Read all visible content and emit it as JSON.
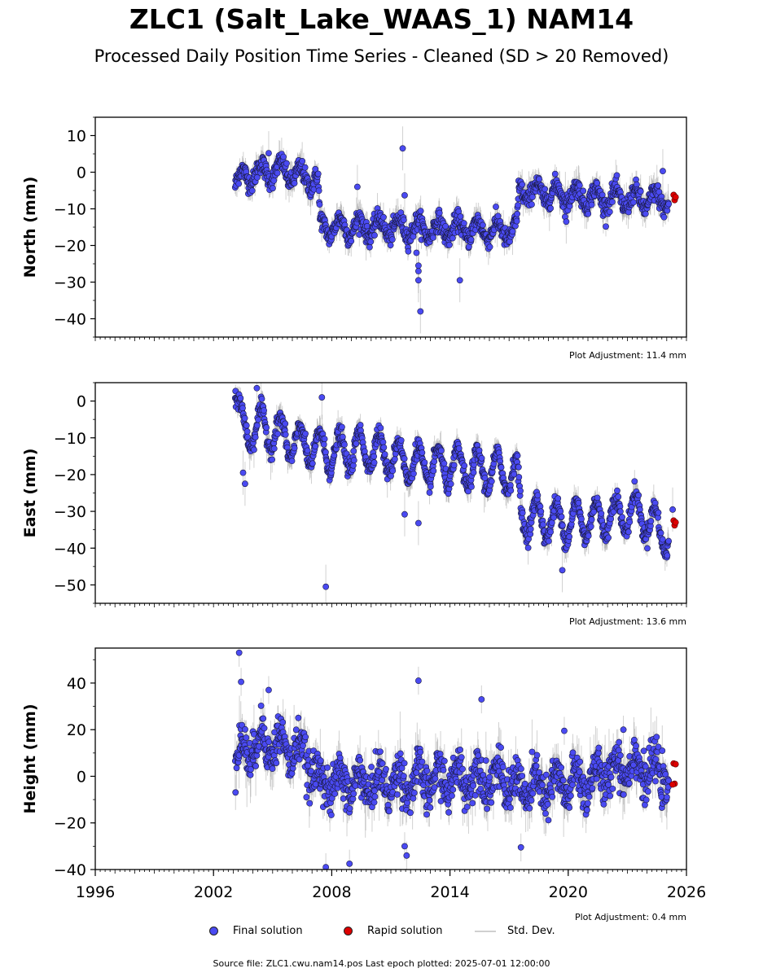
{
  "title": "ZLC1 (Salt_Lake_WAAS_1) NAM14",
  "subtitle": "Processed Daily Position Time Series - Cleaned (SD > 20 Removed)",
  "legend": {
    "final": "Final solution",
    "rapid": "Rapid solution",
    "std": "Std. Dev."
  },
  "source_text": "Source file: ZLC1.cwu.nam14.pos  Last epoch plotted: 2025-07-01 12:00:00",
  "colors": {
    "final": "#4a4af2",
    "rapid": "#dd0000",
    "std": "#9a9a9a",
    "edge": "#1a1a40"
  },
  "chart_data": [
    {
      "type": "scatter",
      "ylabel": "North (mm)",
      "xlim": [
        1996,
        2026
      ],
      "ylim": [
        -45,
        15
      ],
      "yticks": [
        10,
        0,
        -10,
        -20,
        -30,
        -40
      ],
      "adjustment": "Plot Adjustment: 11.4 mm",
      "trend": [
        [
          2003.1,
          -3
        ],
        [
          2003.6,
          -1
        ],
        [
          2004.5,
          0
        ],
        [
          2005.5,
          0.5
        ],
        [
          2006.5,
          -1.5
        ],
        [
          2007.3,
          -2
        ],
        [
          2007.4,
          -15
        ],
        [
          2008.5,
          -15
        ],
        [
          2010.5,
          -15
        ],
        [
          2012.5,
          -15.5
        ],
        [
          2014.5,
          -15.5
        ],
        [
          2016.5,
          -16
        ],
        [
          2017.4,
          -16
        ],
        [
          2017.5,
          -5
        ],
        [
          2019.5,
          -6
        ],
        [
          2021.5,
          -7
        ],
        [
          2023.5,
          -7.5
        ],
        [
          2025.1,
          -7.5
        ]
      ],
      "seasonal_amp": 2.5,
      "noise": 1.3,
      "range": [
        2003.1,
        2025.1
      ],
      "final_outliers": [
        [
          2004.8,
          5.2
        ],
        [
          2009.3,
          -4
        ],
        [
          2011.6,
          6.5
        ],
        [
          2011.7,
          -6.3
        ],
        [
          2012.4,
          -25.5
        ],
        [
          2012.4,
          -27
        ],
        [
          2012.4,
          -29.5
        ],
        [
          2012.5,
          -38
        ],
        [
          2012.3,
          -22
        ],
        [
          2014.5,
          -29.5
        ],
        [
          2019.9,
          -13.5
        ],
        [
          2024.8,
          0.3
        ]
      ],
      "rapid": [
        [
          2025.35,
          -6.2
        ],
        [
          2025.4,
          -7.6
        ],
        [
          2025.45,
          -6.8
        ]
      ]
    },
    {
      "type": "scatter",
      "ylabel": "East (mm)",
      "xlim": [
        1996,
        2026
      ],
      "ylim": [
        -55,
        5
      ],
      "yticks": [
        0,
        -10,
        -20,
        -30,
        -40,
        -50
      ],
      "adjustment": "Plot Adjustment: 13.6 mm",
      "trend": [
        [
          2003.1,
          1
        ],
        [
          2003.5,
          -8
        ],
        [
          2004.5,
          -7
        ],
        [
          2006,
          -11
        ],
        [
          2008,
          -14
        ],
        [
          2010,
          -13
        ],
        [
          2012,
          -17
        ],
        [
          2014,
          -18
        ],
        [
          2016,
          -19
        ],
        [
          2017.4,
          -20
        ],
        [
          2017.6,
          -31
        ],
        [
          2019.5,
          -33
        ],
        [
          2021.5,
          -32
        ],
        [
          2023.5,
          -30
        ],
        [
          2025.1,
          -37
        ]
      ],
      "seasonal_amp": 5,
      "noise": 1.2,
      "range": [
        2003.1,
        2025.1
      ],
      "final_outliers": [
        [
          2003.5,
          -19.5
        ],
        [
          2003.6,
          -22.5
        ],
        [
          2004.2,
          3.5
        ],
        [
          2007.5,
          1
        ],
        [
          2007.7,
          -50.5
        ],
        [
          2011.7,
          -30.8
        ],
        [
          2012.4,
          -33.2
        ],
        [
          2019.7,
          -46
        ],
        [
          2025.3,
          -29.5
        ]
      ],
      "rapid": [
        [
          2025.35,
          -32.5
        ],
        [
          2025.4,
          -33.8
        ],
        [
          2025.45,
          -33
        ]
      ]
    },
    {
      "type": "scatter",
      "ylabel": "Height (mm)",
      "xlim": [
        1996,
        2026
      ],
      "ylim": [
        -40,
        55
      ],
      "yticks": [
        40,
        20,
        0,
        -20,
        -40
      ],
      "xticks": [
        1996,
        2002,
        2008,
        2014,
        2020,
        2026
      ],
      "adjustment": "Plot Adjustment: 0.4 mm",
      "trend": [
        [
          2003.1,
          8
        ],
        [
          2004.5,
          15
        ],
        [
          2006.5,
          10
        ],
        [
          2007.5,
          -3
        ],
        [
          2010,
          -3
        ],
        [
          2013,
          -2
        ],
        [
          2016,
          0
        ],
        [
          2017.5,
          -5
        ],
        [
          2019,
          -5
        ],
        [
          2021,
          -2
        ],
        [
          2023,
          5
        ],
        [
          2025.1,
          0
        ]
      ],
      "seasonal_amp": 6,
      "noise": 4.5,
      "range": [
        2003.1,
        2025.1
      ],
      "final_outliers": [
        [
          2003.3,
          53
        ],
        [
          2003.4,
          40.5
        ],
        [
          2004.8,
          37
        ],
        [
          2007.7,
          -39
        ],
        [
          2008.9,
          -37.5
        ],
        [
          2012.4,
          41
        ],
        [
          2011.7,
          -30
        ],
        [
          2011.8,
          -34
        ],
        [
          2015.6,
          33
        ],
        [
          2017.6,
          -30.5
        ],
        [
          2019.8,
          19.5
        ],
        [
          2022.8,
          20
        ]
      ],
      "rapid": [
        [
          2025.35,
          5.5
        ],
        [
          2025.4,
          -3.2
        ],
        [
          2025.45,
          5.2
        ],
        [
          2025.3,
          -3.5
        ]
      ]
    }
  ]
}
